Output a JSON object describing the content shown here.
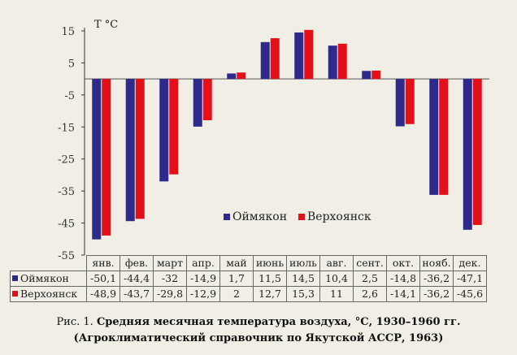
{
  "chart_data": {
    "type": "bar",
    "unit_label": "T °C",
    "categories": [
      "янв.",
      "фев.",
      "март",
      "апр.",
      "май",
      "июнь",
      "июль",
      "авг.",
      "сент.",
      "окт.",
      "нояб.",
      "дек."
    ],
    "series": [
      {
        "name": "Оймякон",
        "color": "#2e2a8c",
        "values": [
          -50.1,
          -44.4,
          -32,
          -14.9,
          1.7,
          11.5,
          14.5,
          10.4,
          2.5,
          -14.8,
          -36.2,
          -47.1
        ]
      },
      {
        "name": "Верхоянск",
        "color": "#e3101a",
        "values": [
          -48.9,
          -43.7,
          -29.8,
          -12.9,
          2,
          12.7,
          15.3,
          11,
          2.6,
          -14.1,
          -36.2,
          -45.6
        ]
      }
    ],
    "yticks": [
      "15",
      "5",
      "-5",
      "-15",
      "-25",
      "-35",
      "-45",
      "-55"
    ],
    "ylim": [
      -55,
      15
    ],
    "legend_position": "lower-right inside plot",
    "table": {
      "rows": [
        {
          "label": "Оймякон",
          "cells": [
            "-50,1",
            "-44,4",
            "-32",
            "-14,9",
            "1,7",
            "11,5",
            "14,5",
            "10,4",
            "2,5",
            "-14,8",
            "-36,2",
            "-47,1"
          ]
        },
        {
          "label": "Верхоянск",
          "cells": [
            "-48,9",
            "-43,7",
            "-29,8",
            "-12,9",
            "2",
            "12,7",
            "15,3",
            "11",
            "2,6",
            "-14,1",
            "-36,2",
            "-45,6"
          ]
        }
      ]
    }
  },
  "caption": {
    "prefix": "Рис. 1.",
    "title": "Средняя месячная температура воздуха, °С, 1930–1960 гг.",
    "source": "(Агроклиматический справочник по Якутской АССР, 1963)"
  }
}
